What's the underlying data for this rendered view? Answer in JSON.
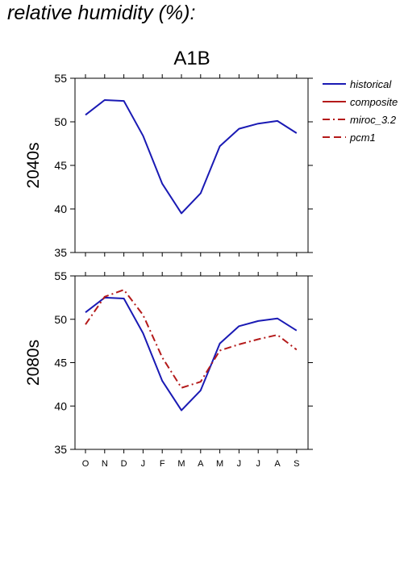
{
  "page": {
    "title": "relative humidity (%):"
  },
  "chart_data": {
    "type": "line",
    "title": "A1B",
    "categories": [
      "O",
      "N",
      "D",
      "J",
      "F",
      "M",
      "A",
      "M",
      "J",
      "J",
      "A",
      "S"
    ],
    "ylim": [
      35,
      55
    ],
    "yticks": [
      35,
      40,
      45,
      50,
      55
    ],
    "grid": false,
    "legend_position": "top-right",
    "legend": [
      {
        "name": "historical",
        "color": "#1a1ab4",
        "dash": "solid"
      },
      {
        "name": "composite",
        "color": "#b41a1a",
        "dash": "solid"
      },
      {
        "name": "miroc_3.2",
        "color": "#b41a1a",
        "dash": "dashdot"
      },
      {
        "name": "pcm1",
        "color": "#b41a1a",
        "dash": "dashed"
      }
    ],
    "panels": [
      {
        "ylabel": "2040s",
        "series": [
          {
            "name": "historical",
            "color": "#1a1ab4",
            "dash": "solid",
            "values": [
              50.8,
              52.5,
              52.4,
              48.4,
              42.9,
              39.5,
              41.8,
              47.2,
              49.2,
              49.8,
              50.1,
              48.7
            ]
          }
        ]
      },
      {
        "ylabel": "2080s",
        "series": [
          {
            "name": "historical",
            "color": "#1a1ab4",
            "dash": "solid",
            "values": [
              50.8,
              52.5,
              52.4,
              48.4,
              42.9,
              39.5,
              41.8,
              47.2,
              49.2,
              49.8,
              50.1,
              48.7
            ]
          },
          {
            "name": "miroc_3.2",
            "color": "#b41a1a",
            "dash": "dashdot",
            "values": [
              49.4,
              52.6,
              53.4,
              50.5,
              45.6,
              42.1,
              42.8,
              46.4,
              47.1,
              47.7,
              48.2,
              46.5
            ]
          }
        ]
      }
    ]
  }
}
